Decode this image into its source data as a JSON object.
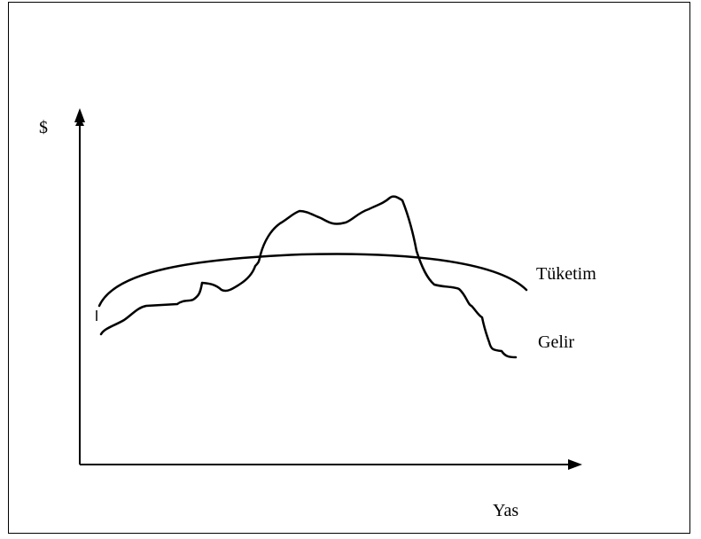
{
  "diagram": {
    "y_axis_label": "$",
    "x_axis_label": "Yas",
    "curves": [
      {
        "name": "Tüketim",
        "shape": "smooth-arc"
      },
      {
        "name": "Gelir",
        "shape": "hump"
      }
    ],
    "stroke_color": "#000000"
  }
}
